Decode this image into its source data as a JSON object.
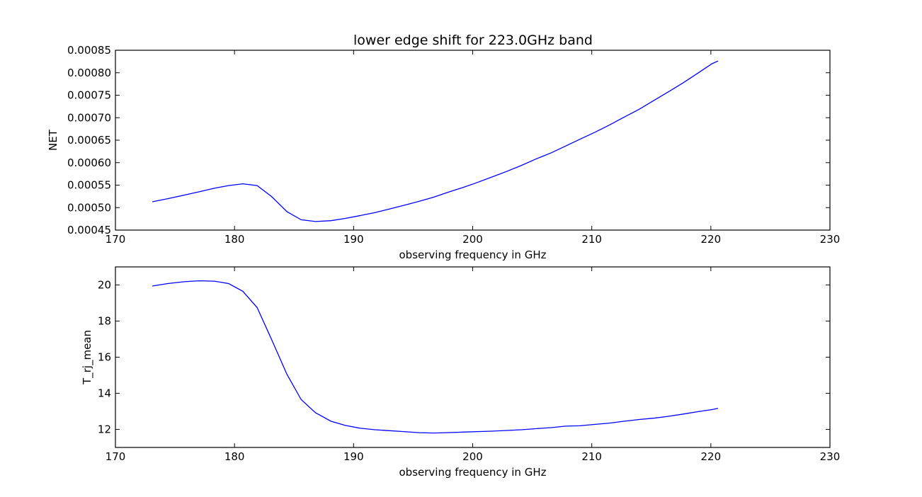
{
  "figure": {
    "title": "lower edge shift for 223.0GHz band"
  },
  "chart_data": [
    {
      "type": "line",
      "title": "lower edge shift for 223.0GHz band",
      "xlabel": "observing frequency in GHz",
      "ylabel": "NET",
      "xlim": [
        170,
        230
      ],
      "ylim": [
        0.00045,
        0.00085
      ],
      "xticks": [
        170,
        180,
        190,
        200,
        210,
        220,
        230
      ],
      "xtick_labels": [
        "170",
        "180",
        "190",
        "200",
        "210",
        "220",
        "230"
      ],
      "yticks": [
        0.00045,
        0.0005,
        0.00055,
        0.0006,
        0.00065,
        0.0007,
        0.00075,
        0.0008,
        0.00085
      ],
      "ytick_labels": [
        "0.00045",
        "0.00050",
        "0.00055",
        "0.00060",
        "0.00065",
        "0.00070",
        "0.00075",
        "0.00080",
        "0.00085"
      ],
      "grid": false,
      "line_color": "#0000ff",
      "series": [
        {
          "x": [
            173.1,
            174.4,
            175.8,
            177.0,
            178.3,
            179.5,
            180.7,
            181.9,
            183.1,
            184.4,
            185.6,
            186.8,
            188.1,
            189.3,
            190.5,
            191.8,
            193.0,
            194.2,
            195.5,
            196.7,
            197.9,
            199.2,
            200.4,
            201.6,
            202.9,
            204.1,
            205.3,
            206.6,
            207.8,
            209.0,
            210.3,
            211.5,
            212.7,
            214.0,
            215.2,
            216.4,
            217.7,
            218.9,
            220.1,
            220.6
          ],
          "y": [
            0.000513,
            0.00052,
            0.000528,
            0.000535,
            0.000543,
            0.000549,
            0.000553,
            0.000549,
            0.000525,
            0.000491,
            0.000473,
            0.000469,
            0.000471,
            0.000476,
            0.000482,
            0.000489,
            0.000497,
            0.000505,
            0.000514,
            0.000523,
            0.000534,
            0.000545,
            0.000556,
            0.000568,
            0.000581,
            0.000594,
            0.000608,
            0.000622,
            0.000637,
            0.000652,
            0.000668,
            0.000684,
            0.000701,
            0.000719,
            0.000738,
            0.000757,
            0.000778,
            0.000799,
            0.00082,
            0.000826
          ]
        }
      ]
    },
    {
      "type": "line",
      "xlabel": "observing frequency in GHz",
      "ylabel": "T_rj_mean",
      "xlim": [
        170,
        230
      ],
      "ylim": [
        11,
        21
      ],
      "xticks": [
        170,
        180,
        190,
        200,
        210,
        220,
        230
      ],
      "xtick_labels": [
        "170",
        "180",
        "190",
        "200",
        "210",
        "220",
        "230"
      ],
      "yticks": [
        12,
        14,
        16,
        18,
        20
      ],
      "ytick_labels": [
        "12",
        "14",
        "16",
        "18",
        "20"
      ],
      "grid": false,
      "line_color": "#0000ff",
      "series": [
        {
          "x": [
            173.1,
            174.4,
            175.8,
            177.0,
            178.3,
            179.5,
            180.7,
            181.9,
            183.1,
            184.4,
            185.6,
            186.8,
            188.1,
            189.3,
            190.5,
            191.8,
            193.0,
            194.2,
            195.5,
            196.7,
            197.9,
            199.2,
            200.4,
            201.6,
            202.9,
            204.1,
            205.3,
            206.6,
            207.8,
            209.0,
            210.3,
            211.5,
            212.7,
            214.0,
            215.2,
            216.4,
            217.7,
            218.9,
            220.1,
            220.6
          ],
          "y": [
            19.94,
            20.08,
            20.18,
            20.23,
            20.21,
            20.08,
            19.65,
            18.75,
            17.0,
            15.05,
            13.65,
            12.92,
            12.45,
            12.22,
            12.07,
            11.98,
            11.93,
            11.88,
            11.82,
            11.8,
            11.82,
            11.85,
            11.88,
            11.9,
            11.94,
            11.98,
            12.04,
            12.1,
            12.18,
            12.2,
            12.28,
            12.35,
            12.45,
            12.55,
            12.62,
            12.72,
            12.85,
            12.98,
            13.1,
            13.17
          ]
        }
      ]
    }
  ]
}
